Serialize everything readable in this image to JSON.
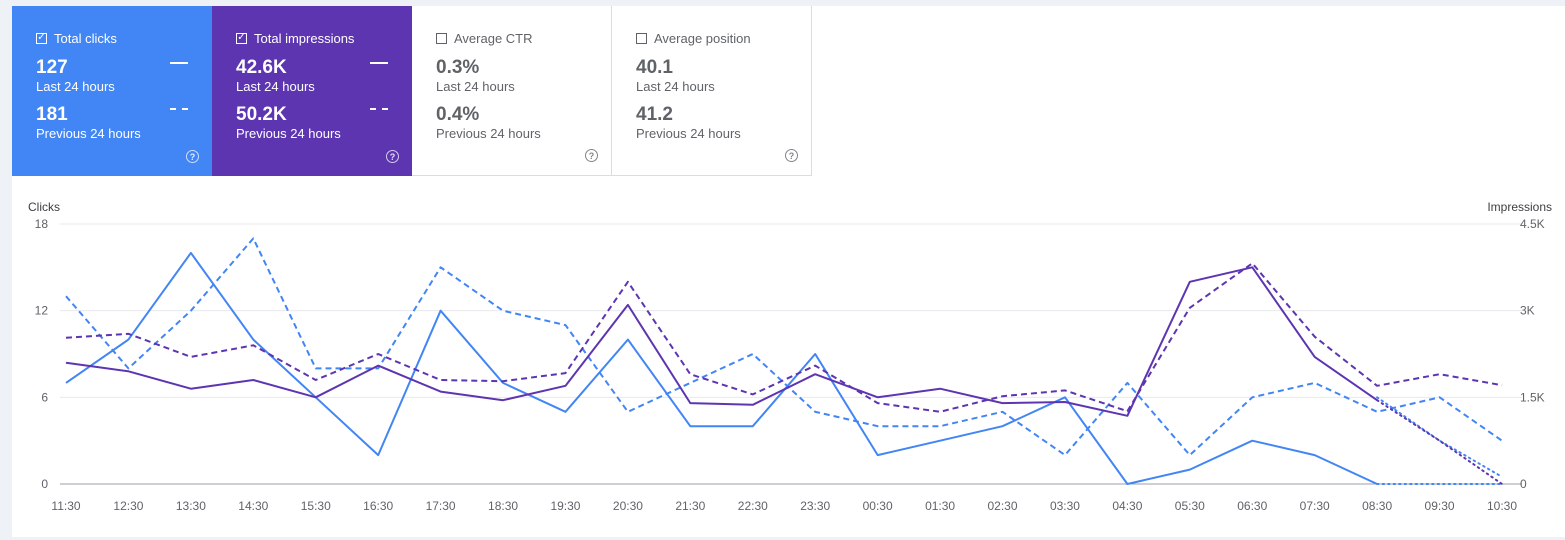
{
  "metrics": [
    {
      "label": "Total clicks",
      "checked": true,
      "current": "127",
      "current_period": "Last 24 hours",
      "previous": "181",
      "previous_period": "Previous 24 hours",
      "color": "#4285f4"
    },
    {
      "label": "Total impressions",
      "checked": true,
      "current": "42.6K",
      "current_period": "Last 24 hours",
      "previous": "50.2K",
      "previous_period": "Previous 24 hours",
      "color": "#5e35b1"
    },
    {
      "label": "Average CTR",
      "checked": false,
      "current": "0.3%",
      "current_period": "Last 24 hours",
      "previous": "0.4%",
      "previous_period": "Previous 24 hours"
    },
    {
      "label": "Average position",
      "checked": false,
      "current": "40.1",
      "current_period": "Last 24 hours",
      "previous": "41.2",
      "previous_period": "Previous 24 hours"
    }
  ],
  "icons": {
    "check": "check-icon",
    "help": "help-icon"
  },
  "chart_data": {
    "type": "line",
    "xlabel": "",
    "ylabel_left": "Clicks",
    "ylabel_right": "Impressions",
    "x": [
      "11:30",
      "12:30",
      "13:30",
      "14:30",
      "15:30",
      "16:30",
      "17:30",
      "18:30",
      "19:30",
      "20:30",
      "21:30",
      "22:30",
      "23:30",
      "00:30",
      "01:30",
      "02:30",
      "03:30",
      "04:30",
      "05:30",
      "06:30",
      "07:30",
      "08:30",
      "09:30",
      "10:30"
    ],
    "y_left_ticks": [
      "0",
      "6",
      "12",
      "18"
    ],
    "y_right_ticks": [
      "0",
      "1.5K",
      "3K",
      "4.5K"
    ],
    "ylim_left": [
      0,
      18
    ],
    "ylim_right": [
      0,
      4500
    ],
    "grid": true,
    "series": [
      {
        "name": "Total clicks",
        "axis": "left",
        "style": "solid",
        "color": "#4285f4",
        "values": [
          7,
          10,
          16,
          10,
          6,
          2,
          12,
          7,
          5,
          10,
          4,
          4,
          9,
          2,
          3,
          4,
          6,
          0,
          1,
          3,
          2,
          0,
          null,
          null
        ],
        "partial": [
          0,
          null,
          null
        ]
      },
      {
        "name": "Total clicks",
        "axis": "left",
        "style": "dashed",
        "color": "#4285f4",
        "values": [
          13,
          8,
          12,
          17,
          8,
          8,
          15,
          12,
          11,
          5,
          7,
          9,
          5,
          4,
          4,
          5,
          2,
          7,
          2,
          6,
          7,
          5,
          6,
          3
        ],
        "partial": [
          6,
          3,
          0.5
        ]
      },
      {
        "name": "Total impressions",
        "axis": "right",
        "style": "solid",
        "color": "#5e35b1",
        "values": [
          2100,
          1950,
          1650,
          1800,
          1500,
          2050,
          1600,
          1450,
          1700,
          3100,
          1400,
          1370,
          1900,
          1500,
          1650,
          1400,
          1420,
          1180,
          3500,
          3750,
          2200,
          1450,
          null,
          null
        ],
        "partial": [
          1450,
          750,
          0
        ]
      },
      {
        "name": "Total impressions",
        "axis": "right",
        "style": "dashed",
        "color": "#5e35b1",
        "values": [
          2530,
          2600,
          2200,
          2400,
          1800,
          2250,
          1800,
          1780,
          1920,
          3500,
          1900,
          1550,
          2050,
          1400,
          1250,
          1520,
          1620,
          1260,
          3050,
          3820,
          2550,
          1700,
          1900,
          1710
        ]
      }
    ]
  }
}
